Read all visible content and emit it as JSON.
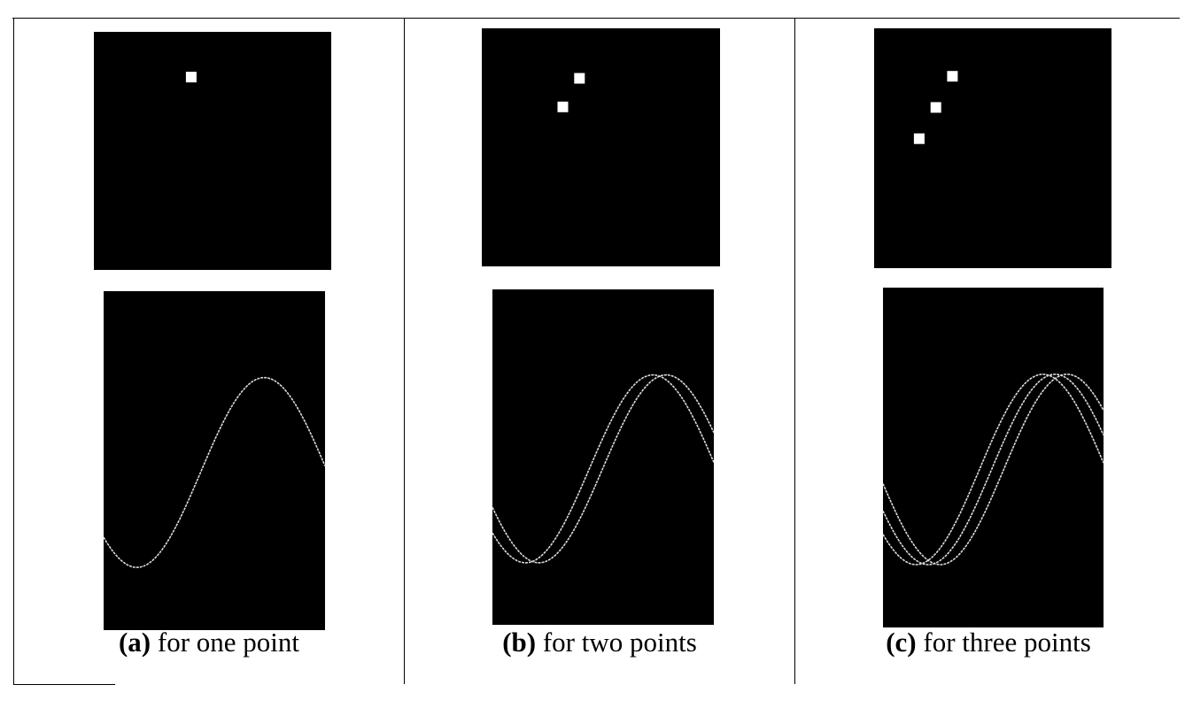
{
  "panels": [
    {
      "label": "(a)",
      "caption": "for one point",
      "points": [
        [
          0.41,
          0.19
        ]
      ],
      "curves": [
        {
          "shift": 0.0
        }
      ]
    },
    {
      "label": "(b)",
      "caption": "for two points",
      "points": [
        [
          0.41,
          0.21
        ],
        [
          0.34,
          0.33
        ]
      ],
      "curves": [
        {
          "shift": 0.0
        },
        {
          "shift": 0.06
        }
      ]
    },
    {
      "label": "(c)",
      "caption": "for three points",
      "points": [
        [
          0.33,
          0.2
        ],
        [
          0.26,
          0.33
        ],
        [
          0.19,
          0.46
        ]
      ],
      "curves": [
        {
          "shift": 0.0
        },
        {
          "shift": 0.055
        },
        {
          "shift": 0.11
        }
      ]
    }
  ],
  "colors": {
    "panel_background": "#000000",
    "point": "#ffffff",
    "curve": "#d9d9d9",
    "grid_line": "#000000",
    "page": "#ffffff"
  }
}
